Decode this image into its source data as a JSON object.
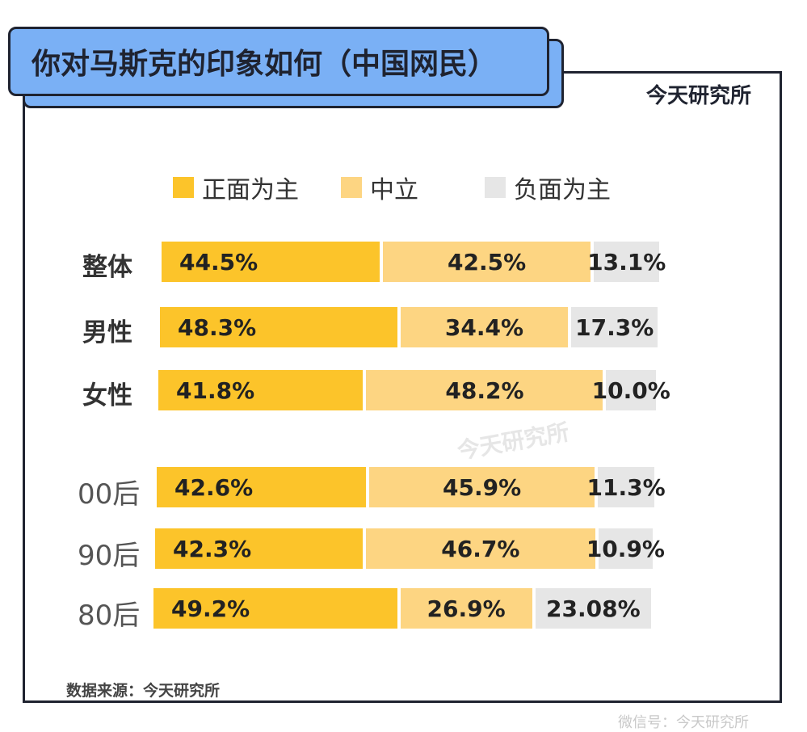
{
  "title": "你对马斯克的印象如何（中国网民）",
  "brand": "今天研究所",
  "watermark": "今天研究所",
  "source": "数据来源：今天研究所",
  "footer_mark": "微信号：今天研究所",
  "colors": {
    "positive": "#fcc42a",
    "neutral": "#fdd582",
    "negative": "#e6e6e6",
    "title_bg": "#7ab0f5"
  },
  "chart_data": {
    "type": "bar",
    "stacked": true,
    "orientation": "horizontal",
    "categories": [
      "整体",
      "男性",
      "女性",
      "00后",
      "90后",
      "80后"
    ],
    "series": [
      {
        "name": "正面为主",
        "values": [
          44.5,
          48.3,
          41.8,
          42.6,
          42.3,
          49.2
        ],
        "labels": [
          "44.5%",
          "48.3%",
          "41.8%",
          "42.6%",
          "42.3%",
          "49.2%"
        ]
      },
      {
        "name": "中立",
        "values": [
          42.5,
          34.4,
          48.2,
          45.9,
          46.7,
          26.9
        ],
        "labels": [
          "42.5%",
          "34.4%",
          "48.2%",
          "45.9%",
          "46.7%",
          "26.9%"
        ]
      },
      {
        "name": "负面为主",
        "values": [
          13.1,
          17.3,
          10.0,
          11.3,
          10.9,
          23.08
        ],
        "labels": [
          "13.1%",
          "17.3%",
          "10.0%",
          "11.3%",
          "10.9%",
          "23.08%"
        ]
      }
    ],
    "legend_position": "top"
  }
}
